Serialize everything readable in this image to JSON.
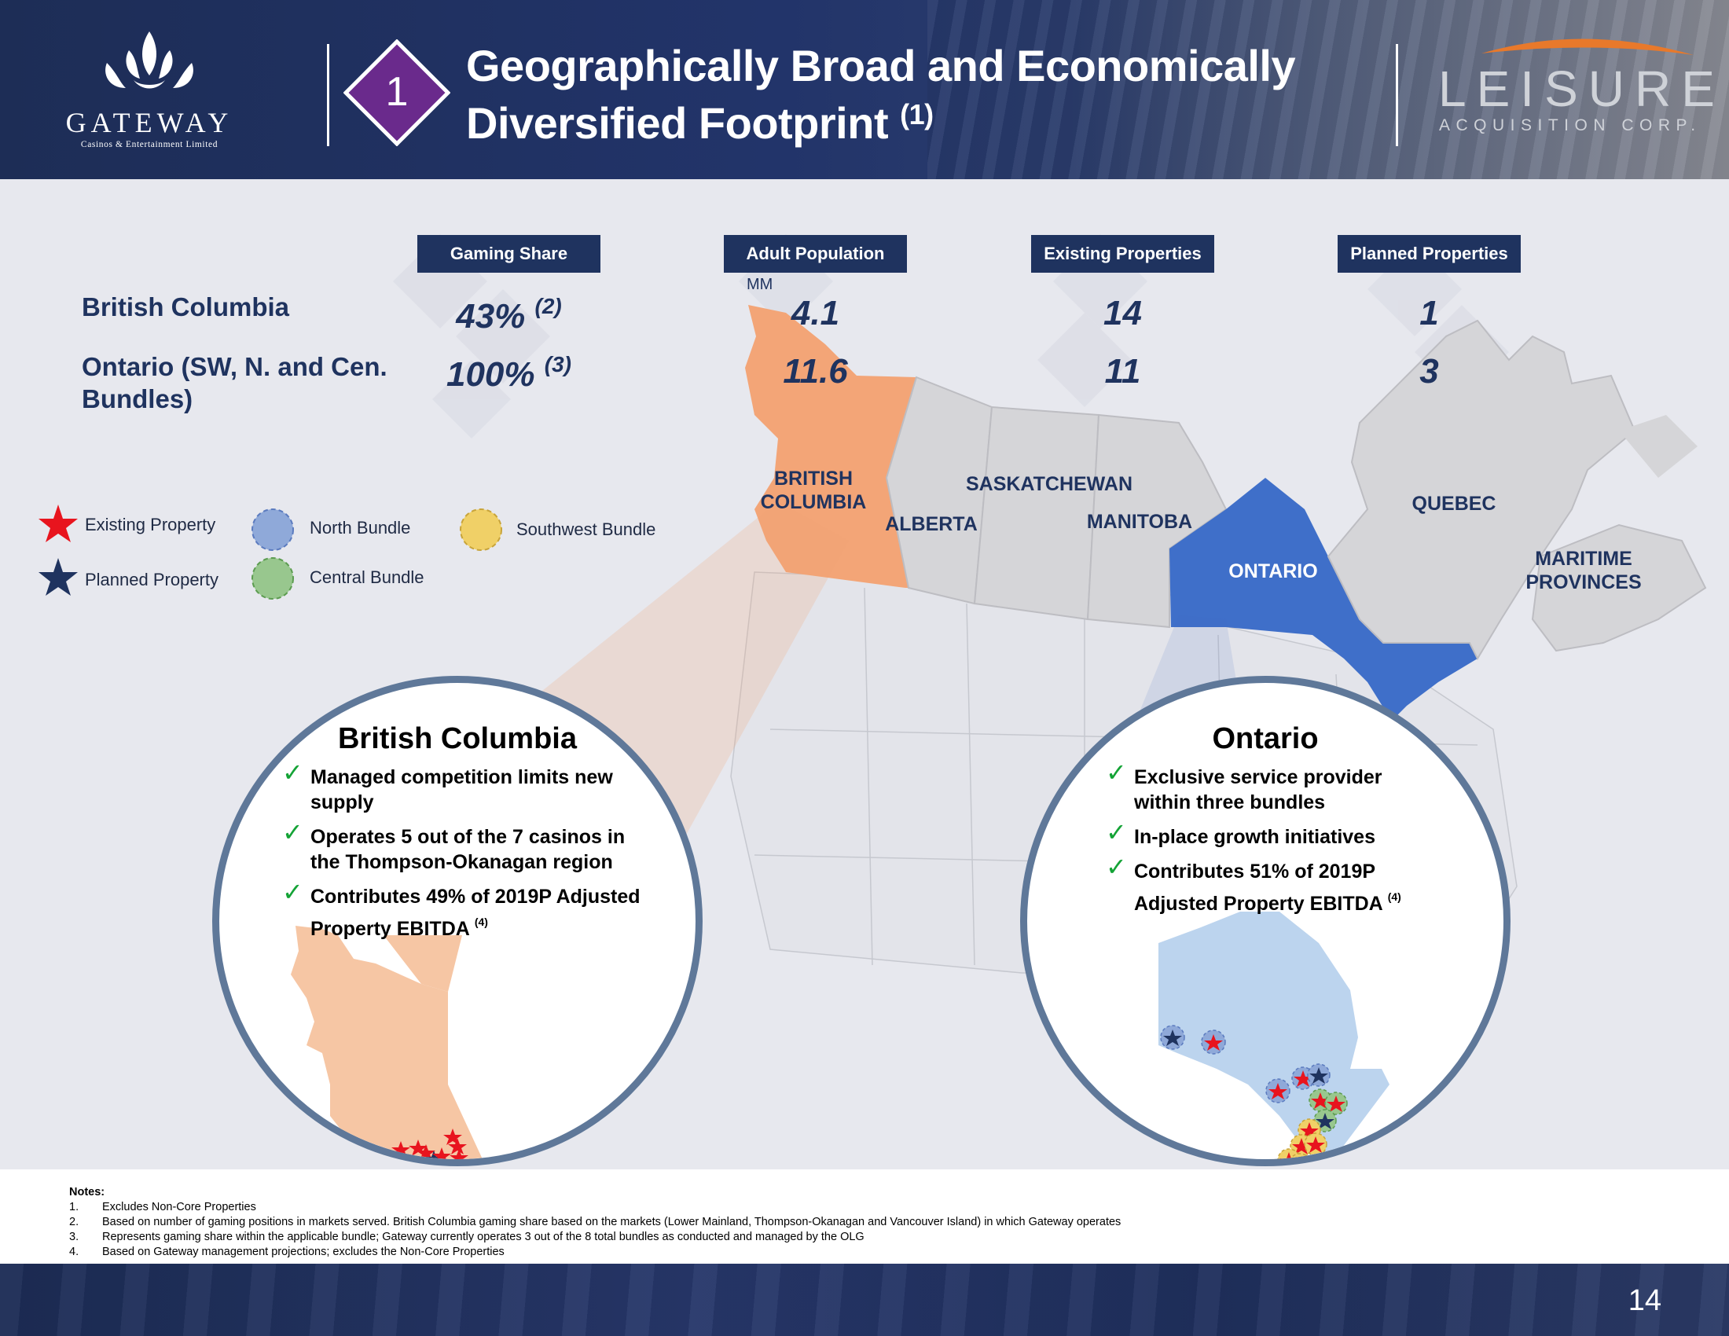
{
  "header": {
    "gateway_logo": {
      "name": "GATEWAY",
      "subtitle": "Casinos & Entertainment Limited"
    },
    "section_number": "1",
    "title_line1": "Geographically Broad and Economically",
    "title_line2": "Diversified Footprint",
    "title_note": "(1)",
    "leisure_logo": {
      "name": "LEISURE",
      "subtitle": "ACQUISITION CORP."
    }
  },
  "table": {
    "columns": [
      "Gaming Share",
      "Adult Population",
      "Existing Properties",
      "Planned Properties"
    ],
    "population_unit": "MM",
    "rows": [
      {
        "label": "British Columbia",
        "gaming_share": "43%",
        "gaming_note": "(2)",
        "adult_population": "4.1",
        "existing": "14",
        "planned": "1"
      },
      {
        "label": "Ontario (SW, N. and Cen. Bundles)",
        "gaming_share": "100%",
        "gaming_note": "(3)",
        "adult_population": "11.6",
        "existing": "11",
        "planned": "3"
      }
    ]
  },
  "legend": {
    "existing_property": "Existing Property",
    "planned_property": "Planned Property",
    "north_bundle": "North Bundle",
    "central_bundle": "Central Bundle",
    "southwest_bundle": "Southwest Bundle",
    "colors": {
      "existing": "#e8141e",
      "planned": "#1f335f",
      "north": "#8fa9d9",
      "central": "#98c78e",
      "southwest": "#f0d067"
    }
  },
  "map": {
    "provinces": {
      "british_columbia": "BRITISH COLUMBIA",
      "alberta": "ALBERTA",
      "saskatchewan": "SASKATCHEWAN",
      "manitoba": "MANITOBA",
      "ontario": "ONTARIO",
      "quebec": "QUEBEC",
      "maritime": "MARITIME PROVINCES"
    },
    "colors": {
      "bc": "#f3a577",
      "ontario": "#3f6fc9",
      "other": "#d5d5d8"
    }
  },
  "bc_panel": {
    "title": "British Columbia",
    "bullets": [
      {
        "text": "Managed competition limits new supply"
      },
      {
        "text": "Operates 5 out of the 7 casinos in the Thompson-Okanagan region"
      },
      {
        "text": "Contributes 49% of 2019P Adjusted Property EBITDA",
        "note": "(4)"
      }
    ]
  },
  "ontario_panel": {
    "title": "Ontario",
    "bullets": [
      {
        "text": "Exclusive service provider within three bundles"
      },
      {
        "text": "In-place growth initiatives"
      },
      {
        "text": "Contributes 51% of 2019P Adjusted Property EBITDA",
        "note": "(4)"
      }
    ]
  },
  "notes": {
    "heading": "Notes:",
    "items": [
      {
        "num": "1.",
        "text": "Excludes Non-Core Properties"
      },
      {
        "num": "2.",
        "text": "Based on number of gaming positions in markets served. British Columbia gaming share based on the markets (Lower Mainland, Thompson-Okanagan and Vancouver Island) in which Gateway operates"
      },
      {
        "num": "3.",
        "text": "Represents gaming share within the applicable bundle; Gateway currently operates 3 out of the 8 total bundles as conducted and managed by the OLG"
      },
      {
        "num": "4.",
        "text": "Based on Gateway management projections; excludes the Non-Core Properties"
      }
    ]
  },
  "footer": {
    "page_number": "14"
  }
}
